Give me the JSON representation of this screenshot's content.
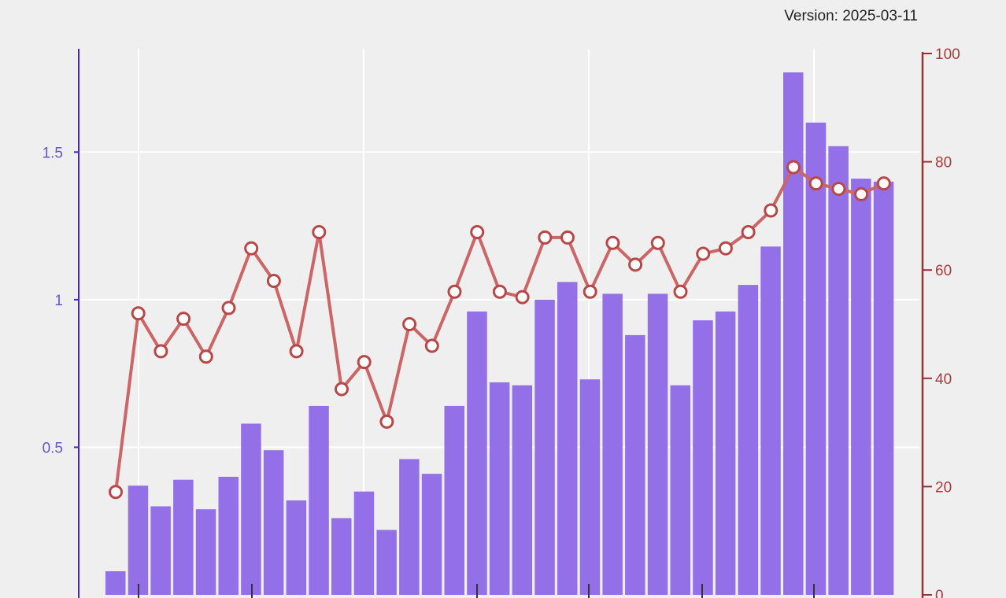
{
  "header": {
    "version_text": "Version: 2025-03-11"
  },
  "colors": {
    "background": "#efefef",
    "grid": "#ffffff",
    "bar_fill": "#9370e8",
    "left_axis": "#4422cc",
    "left_tick_text": "#6655cc",
    "right_axis": "#993333",
    "right_tick_text": "#aa3b3b",
    "line": "#cc6666",
    "marker_fill": "#ffffff",
    "marker_stroke": "#b84848"
  },
  "chart_data": {
    "type": "bar",
    "title": "",
    "xlabel": "",
    "ylabel": "",
    "y2label": "",
    "grid": true,
    "n_points": 36,
    "left_axis": {
      "ylim": [
        0,
        1.85
      ],
      "ticks": [
        {
          "value": 0.5,
          "label": "0.5"
        },
        {
          "value": 1.0,
          "label": "1"
        },
        {
          "value": 1.5,
          "label": "1.5"
        }
      ]
    },
    "right_axis": {
      "ylim": [
        0,
        100
      ],
      "ticks": [
        {
          "value": 0,
          "label": "0"
        },
        {
          "value": 20,
          "label": "20"
        },
        {
          "value": 40,
          "label": "40"
        },
        {
          "value": 60,
          "label": "60"
        },
        {
          "value": 80,
          "label": "80"
        },
        {
          "value": 100,
          "label": "100"
        }
      ]
    },
    "series": [
      {
        "type": "bar",
        "axis": "left",
        "values": [
          0.08,
          0.37,
          0.3,
          0.39,
          0.29,
          0.4,
          0.58,
          0.49,
          0.32,
          0.64,
          0.26,
          0.35,
          0.22,
          0.46,
          0.41,
          0.64,
          0.96,
          0.72,
          0.71,
          1.0,
          1.06,
          0.73,
          1.02,
          0.88,
          1.02,
          0.71,
          0.93,
          0.96,
          1.05,
          1.18,
          1.77,
          1.6,
          1.52,
          1.41,
          1.4,
          0.0
        ]
      },
      {
        "type": "line",
        "axis": "right",
        "values": [
          19,
          52,
          45,
          51,
          44,
          53,
          64,
          58,
          45,
          67,
          38,
          43,
          32,
          50,
          46,
          56,
          67,
          56,
          55,
          66,
          66,
          56,
          65,
          61,
          65,
          56,
          63,
          64,
          67,
          71,
          79,
          76,
          75,
          74,
          76,
          null
        ]
      }
    ]
  }
}
